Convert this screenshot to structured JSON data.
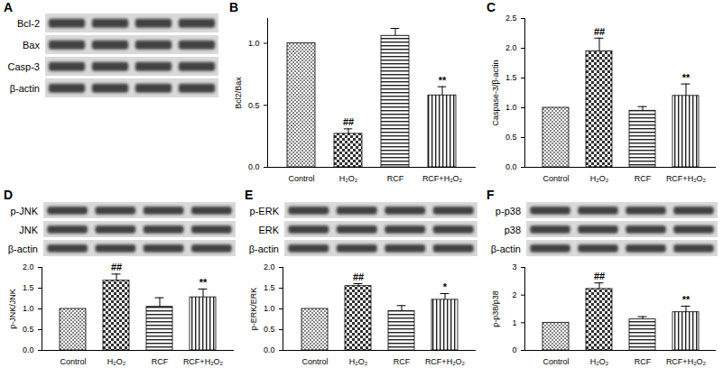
{
  "chart_data": [
    {
      "panel": "A",
      "type": "blot",
      "labels": [
        "Bcl-2",
        "Bax",
        "Casp-3",
        "β-actin"
      ]
    },
    {
      "panel": "B",
      "type": "bar",
      "ylabel": "Bcl2/Bax",
      "categories": [
        "Control",
        "H₂O₂",
        "RCF",
        "RCF+H₂O₂"
      ],
      "values": [
        1,
        0.27,
        1.06,
        0.58
      ],
      "errors": [
        null,
        0.04,
        0.06,
        0.07
      ],
      "significance": [
        null,
        "##",
        null,
        "**"
      ],
      "ylim": [
        0,
        1.2
      ],
      "yticks": [
        {
          "value": 0,
          "label": "0.0"
        },
        {
          "value": 0.5,
          "label": "0.5"
        },
        {
          "value": 1,
          "label": "1.0"
        }
      ]
    },
    {
      "panel": "C",
      "type": "bar",
      "ylabel": "Caspase-3/β-actin",
      "categories": [
        "Control",
        "H₂O₂",
        "RCF",
        "RCF+H₂O₂"
      ],
      "values": [
        1,
        1.95,
        0.95,
        1.2
      ],
      "errors": [
        null,
        0.22,
        0.07,
        0.2
      ],
      "significance": [
        null,
        "##",
        null,
        "**"
      ],
      "ylim": [
        0,
        2.5
      ],
      "yticks": [
        {
          "value": 0,
          "label": "0.0"
        },
        {
          "value": 0.5,
          "label": "0.5"
        },
        {
          "value": 1,
          "label": "1.0"
        },
        {
          "value": 1.5,
          "label": "1.5"
        },
        {
          "value": 2,
          "label": "2.0"
        },
        {
          "value": 2.5,
          "label": "2.5"
        }
      ]
    },
    {
      "panel": "D",
      "type": "bar",
      "ylabel": "p-JNK/JNK",
      "blot_labels": [
        "p-JNK",
        "JNK",
        "β-actin"
      ],
      "categories": [
        "Control",
        "H₂O₂",
        "RCF",
        "RCF+H₂O₂"
      ],
      "values": [
        1,
        1.68,
        1.05,
        1.28
      ],
      "errors": [
        null,
        0.16,
        0.22,
        0.2
      ],
      "significance": [
        null,
        "##",
        null,
        "**"
      ],
      "ylim": [
        0,
        2
      ],
      "yticks": [
        {
          "value": 0,
          "label": "0.0"
        },
        {
          "value": 0.5,
          "label": "0.5"
        },
        {
          "value": 1,
          "label": "1.0"
        },
        {
          "value": 1.5,
          "label": "1.5"
        },
        {
          "value": 2,
          "label": "2.0"
        }
      ]
    },
    {
      "panel": "E",
      "type": "bar",
      "ylabel": "p-ERK/ERK",
      "blot_labels": [
        "p-ERK",
        "ERK",
        "β-actin"
      ],
      "categories": [
        "Control",
        "H₂O₂",
        "RCF",
        "RCF+H₂O₂"
      ],
      "values": [
        1,
        1.55,
        0.95,
        1.22
      ],
      "errors": [
        null,
        0.06,
        0.13,
        0.15
      ],
      "significance": [
        null,
        "##",
        null,
        "*"
      ],
      "ylim": [
        0,
        2
      ],
      "yticks": [
        {
          "value": 0,
          "label": "0.0"
        },
        {
          "value": 0.5,
          "label": "0.5"
        },
        {
          "value": 1,
          "label": "1.0"
        },
        {
          "value": 1.5,
          "label": "1.5"
        },
        {
          "value": 2,
          "label": "2.0"
        }
      ]
    },
    {
      "panel": "F",
      "type": "bar",
      "ylabel": "p-p38/p38",
      "blot_labels": [
        "p-p38",
        "p38",
        "β-actin"
      ],
      "categories": [
        "Control",
        "H₂O₂",
        "RCF",
        "RCF+H₂O₂"
      ],
      "values": [
        1,
        2.22,
        1.12,
        1.38
      ],
      "errors": [
        null,
        0.22,
        0.1,
        0.22
      ],
      "significance": [
        null,
        "##",
        null,
        "**"
      ],
      "ylim": [
        0,
        3
      ],
      "yticks": [
        0,
        1,
        2,
        3
      ]
    }
  ]
}
